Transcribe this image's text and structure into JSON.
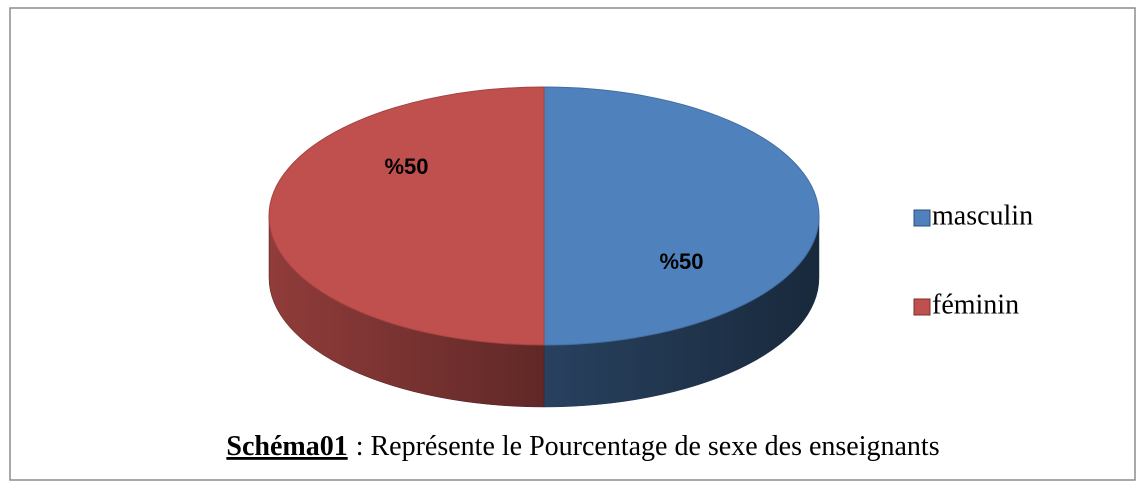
{
  "chart_data": {
    "type": "pie3d",
    "categories": [
      "masculin",
      "féminin"
    ],
    "values": [
      50,
      50
    ],
    "value_labels": [
      "%50",
      "%50"
    ],
    "colors": [
      "#4f81bd",
      "#c0504d"
    ],
    "legend": "right",
    "caption_label": "Schéma01",
    "caption_text": ": Représente le Pourcentage de sexe des enseignants"
  }
}
